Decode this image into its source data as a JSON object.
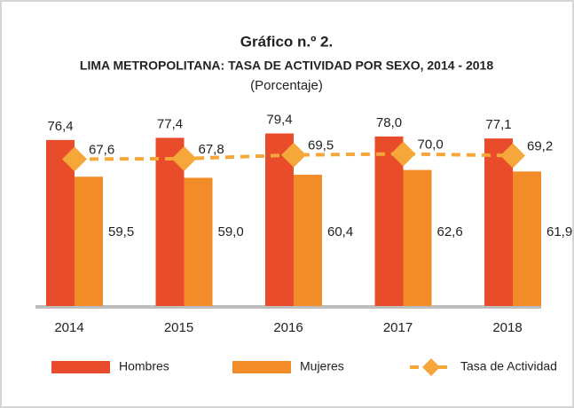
{
  "chart_data": {
    "type": "bar",
    "title": "Gráfico n.º 2.",
    "subtitle": "LIMA METROPOLITANA: TASA DE ACTIVIDAD POR SEXO, 2014 - 2018",
    "unit_label": "(Porcentaje)",
    "categories": [
      "2014",
      "2015",
      "2016",
      "2017",
      "2018"
    ],
    "ylim": [
      0,
      80
    ],
    "series": [
      {
        "name": "Hombres",
        "color": "#e84c2b",
        "type": "bar",
        "values": [
          76.4,
          77.4,
          79.4,
          78.0,
          77.1
        ],
        "value_labels": [
          "76,4",
          "77,4",
          "79,4",
          "78,0",
          "77,1"
        ]
      },
      {
        "name": "Mujeres",
        "color": "#f28c28",
        "type": "bar",
        "values": [
          59.5,
          59.0,
          60.4,
          62.6,
          61.9
        ],
        "value_labels": [
          "59,5",
          "59,0",
          "60,4",
          "62,6",
          "61,9"
        ]
      },
      {
        "name": "Tasa de Actividad",
        "color": "#f5a73a",
        "type": "line",
        "values": [
          67.6,
          67.8,
          69.5,
          70.0,
          69.2
        ],
        "value_labels": [
          "67,6",
          "67,8",
          "69,5",
          "70,0",
          "69,2"
        ]
      }
    ]
  }
}
